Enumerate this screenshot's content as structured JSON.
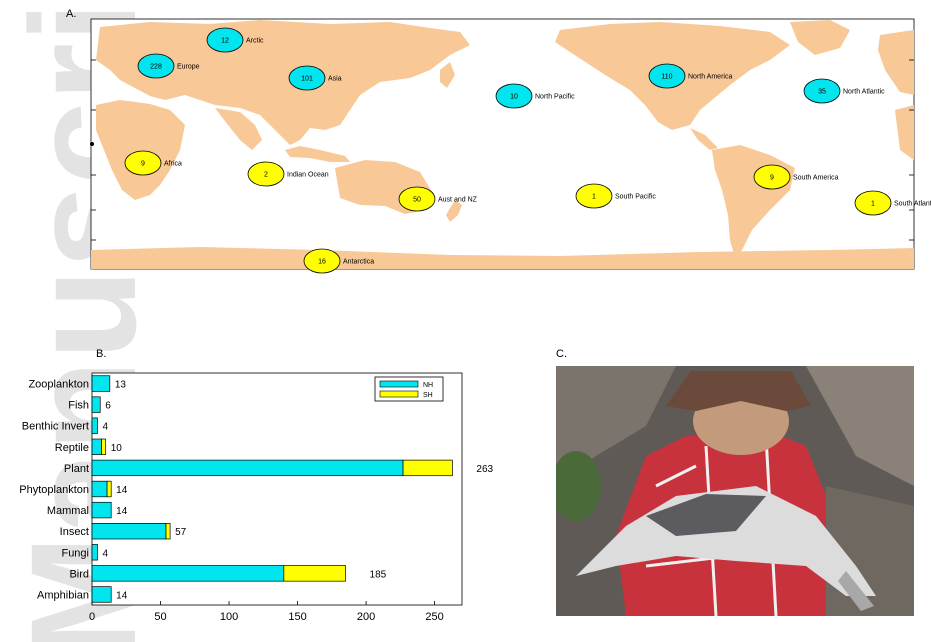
{
  "panels": {
    "a": "A.",
    "b": "B.",
    "c": "C."
  },
  "watermark": {
    "text": "Manuscript",
    "color": "#d9d9d9"
  },
  "map": {
    "land_color": "#f8c896",
    "regions": [
      {
        "name": "Arctic",
        "count": "12",
        "hemisphere": "NH"
      },
      {
        "name": "Europe",
        "count": "228",
        "hemisphere": "NH"
      },
      {
        "name": "Asia",
        "count": "101",
        "hemisphere": "NH"
      },
      {
        "name": "North Pacific",
        "count": "10",
        "hemisphere": "NH"
      },
      {
        "name": "North America",
        "count": "110",
        "hemisphere": "NH"
      },
      {
        "name": "North Atlantic",
        "count": "35",
        "hemisphere": "NH"
      },
      {
        "name": "Africa",
        "count": "9",
        "hemisphere": "SH"
      },
      {
        "name": "Indian Ocean",
        "count": "2",
        "hemisphere": "SH"
      },
      {
        "name": "Aust and NZ",
        "count": "50",
        "hemisphere": "SH"
      },
      {
        "name": "South Pacific",
        "count": "1",
        "hemisphere": "SH"
      },
      {
        "name": "South America",
        "count": "9",
        "hemisphere": "SH"
      },
      {
        "name": "South Atlantic",
        "count": "1",
        "hemisphere": "SH"
      },
      {
        "name": "Antarctica",
        "count": "16",
        "hemisphere": "SH"
      }
    ]
  },
  "chart_data": {
    "type": "bar",
    "orientation": "horizontal",
    "stacked": true,
    "categories": [
      "Zooplankton",
      "Fish",
      "Benthic Invert",
      "Reptile",
      "Plant",
      "Phytoplankton",
      "Mammal",
      "Insect",
      "Fungi",
      "Bird",
      "Amphibian"
    ],
    "series": [
      {
        "name": "NH",
        "color": "#00e5ee",
        "values": [
          13,
          6,
          4,
          7,
          227,
          11,
          14,
          54,
          4,
          140,
          14
        ]
      },
      {
        "name": "SH",
        "color": "#ffff00",
        "values": [
          0,
          0,
          0,
          3,
          36,
          3,
          0,
          3,
          0,
          45,
          0
        ]
      }
    ],
    "totals": [
      13,
      6,
      4,
      10,
      263,
      14,
      14,
      57,
      4,
      185,
      14
    ],
    "xticks": [
      "0",
      "50",
      "100",
      "150",
      "200",
      "250"
    ],
    "xlim": [
      0,
      270
    ],
    "legend_position": "top-right",
    "title": "",
    "xlabel": "",
    "ylabel": ""
  },
  "photo": {
    "description_colors": {
      "rock": "#5f5a55",
      "shirt": "#c8323c",
      "hat": "#6b4a3c",
      "bird": "#dcdcdc"
    }
  }
}
